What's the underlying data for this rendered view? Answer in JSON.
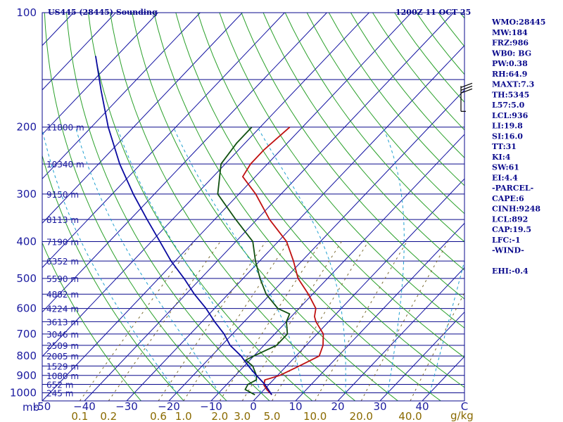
{
  "header": {
    "station": "US445 (28445) Sounding",
    "time": "1200Z 11 OCT 25"
  },
  "indices": [
    "WMO:28445",
    "MW:184",
    "FRZ:986",
    "WB0: BG",
    "PW:0.38",
    "RH:64.9",
    "MAXT:7.3",
    "TH:5345",
    "L57:5.0",
    "LCL:936",
    "LI:19.8",
    "SI:16.0",
    "TT:31",
    "KI:4",
    "SW:61",
    "EI:4.4",
    "-PARCEL-",
    "CAPE:6",
    "CINH:9248",
    "LCL:892",
    "CAP:19.5",
    "LFC:-1",
    "-WIND-",
    "",
    "EHI:-0.4"
  ],
  "colors": {
    "frame": "#0a0a8c",
    "isobar": "#0a0a8c",
    "isotherm": "#1010a0",
    "dry_adiabat": "#2aa02a",
    "moist_adiabat": "#20a0d0",
    "mixing_ratio": "#7a6a30",
    "temperature": "#c01010",
    "dewpoint": "#105010",
    "parcel": "#0a0aa0"
  },
  "chart_data": {
    "type": "line",
    "title": "US445 (28445) Sounding",
    "pressure_unit_label": "mb",
    "mixing_ratio_unit_label": "g/kg",
    "pressure_levels": [
      100,
      200,
      300,
      400,
      500,
      600,
      700,
      800,
      900,
      1000
    ],
    "pressure_tick_labels": [
      "100",
      "200",
      "300",
      "400",
      "500",
      "600",
      "700",
      "800",
      "900",
      "1000"
    ],
    "pressure_range_mb": [
      100,
      1050
    ],
    "temperature_range_c_at_surface": [
      -50,
      50
    ],
    "temperature_ticks": [
      {
        "value": -50,
        "label": "-50"
      },
      {
        "value": -40,
        "label": "−40"
      },
      {
        "value": -30,
        "label": "−30"
      },
      {
        "value": -20,
        "label": "−20"
      },
      {
        "value": -10,
        "label": "−10"
      },
      {
        "value": 0,
        "label": "0"
      },
      {
        "value": 10,
        "label": "10"
      },
      {
        "value": 20,
        "label": "20"
      },
      {
        "value": 30,
        "label": "30"
      },
      {
        "value": 40,
        "label": "40"
      },
      {
        "value": 50,
        "label": "C"
      }
    ],
    "mixing_ratio_ticks": [
      {
        "value": 0.1,
        "label": "0.1"
      },
      {
        "value": 0.2,
        "label": "0.2"
      },
      {
        "value": 0.6,
        "label": "0.6"
      },
      {
        "value": 1.0,
        "label": "1.0"
      },
      {
        "value": 2.0,
        "label": "2.0"
      },
      {
        "value": 3.0,
        "label": "3.0"
      },
      {
        "value": 5.0,
        "label": "5.0"
      },
      {
        "value": 10.0,
        "label": "10.0"
      },
      {
        "value": 20.0,
        "label": "20.0"
      },
      {
        "value": 40.0,
        "label": "40.0"
      }
    ],
    "height_levels": [
      {
        "p": 200,
        "label": "11800 m"
      },
      {
        "p": 250,
        "label": "10340 m"
      },
      {
        "p": 300,
        "label": "9150 m"
      },
      {
        "p": 350,
        "label": "8113 m"
      },
      {
        "p": 400,
        "label": "7190 m"
      },
      {
        "p": 450,
        "label": "6352 m"
      },
      {
        "p": 500,
        "label": "5590 m"
      },
      {
        "p": 550,
        "label": "4882 m"
      },
      {
        "p": 600,
        "label": "4224 m"
      },
      {
        "p": 650,
        "label": "3613 m"
      },
      {
        "p": 700,
        "label": "3046 m"
      },
      {
        "p": 750,
        "label": "2509 m"
      },
      {
        "p": 800,
        "label": "2005 m"
      },
      {
        "p": 850,
        "label": "1529 m"
      },
      {
        "p": 900,
        "label": "1080 m"
      },
      {
        "p": 950,
        "label": "652 m"
      },
      {
        "p": 1000,
        "label": "245 m"
      }
    ],
    "series": [
      {
        "name": "temperature",
        "values": [
          {
            "p": 1012,
            "t": 3.0
          },
          {
            "p": 980,
            "t": 0.6
          },
          {
            "p": 955,
            "t": -1.0
          },
          {
            "p": 925,
            "t": -2.0
          },
          {
            "p": 900,
            "t": 0.5
          },
          {
            "p": 850,
            "t": 3.0
          },
          {
            "p": 800,
            "t": 5.5
          },
          {
            "p": 750,
            "t": 4.0
          },
          {
            "p": 700,
            "t": 1.5
          },
          {
            "p": 650,
            "t": -3.0
          },
          {
            "p": 630,
            "t": -4.5
          },
          {
            "p": 600,
            "t": -6.0
          },
          {
            "p": 550,
            "t": -11.0
          },
          {
            "p": 500,
            "t": -17.0
          },
          {
            "p": 450,
            "t": -22.0
          },
          {
            "p": 400,
            "t": -28.0
          },
          {
            "p": 350,
            "t": -37.0
          },
          {
            "p": 300,
            "t": -46.0
          },
          {
            "p": 270,
            "t": -53.0
          },
          {
            "p": 250,
            "t": -54.0
          },
          {
            "p": 230,
            "t": -54.0
          },
          {
            "p": 200,
            "t": -53.0
          }
        ]
      },
      {
        "name": "dewpoint",
        "values": [
          {
            "p": 1012,
            "t": -1.0
          },
          {
            "p": 980,
            "t": -4.5
          },
          {
            "p": 950,
            "t": -5.0
          },
          {
            "p": 925,
            "t": -4.0
          },
          {
            "p": 900,
            "t": -5.0
          },
          {
            "p": 850,
            "t": -8.0
          },
          {
            "p": 820,
            "t": -11.0
          },
          {
            "p": 800,
            "t": -10.0
          },
          {
            "p": 750,
            "t": -7.0
          },
          {
            "p": 700,
            "t": -7.0
          },
          {
            "p": 650,
            "t": -10.0
          },
          {
            "p": 620,
            "t": -11.0
          },
          {
            "p": 600,
            "t": -15.0
          },
          {
            "p": 550,
            "t": -21.0
          },
          {
            "p": 500,
            "t": -26.0
          },
          {
            "p": 450,
            "t": -31.0
          },
          {
            "p": 400,
            "t": -36.0
          },
          {
            "p": 350,
            "t": -45.0
          },
          {
            "p": 300,
            "t": -55.0
          },
          {
            "p": 250,
            "t": -61.0
          },
          {
            "p": 220,
            "t": -62.0
          },
          {
            "p": 200,
            "t": -62.0
          }
        ]
      },
      {
        "name": "parcel",
        "values": [
          {
            "p": 1012,
            "t": 3.0
          },
          {
            "p": 950,
            "t": -1.0
          },
          {
            "p": 900,
            "t": -5.0
          },
          {
            "p": 850,
            "t": -9.0
          },
          {
            "p": 800,
            "t": -13.0
          },
          {
            "p": 750,
            "t": -18.0
          },
          {
            "p": 700,
            "t": -22.0
          },
          {
            "p": 650,
            "t": -27.0
          },
          {
            "p": 600,
            "t": -32.0
          },
          {
            "p": 550,
            "t": -38.0
          },
          {
            "p": 500,
            "t": -44.0
          },
          {
            "p": 450,
            "t": -51.0
          },
          {
            "p": 400,
            "t": -58.0
          },
          {
            "p": 350,
            "t": -66.0
          },
          {
            "p": 300,
            "t": -75.0
          },
          {
            "p": 250,
            "t": -85.0
          },
          {
            "p": 200,
            "t": -96.0
          },
          {
            "p": 160,
            "t": -106.0
          },
          {
            "p": 130,
            "t": -115.0
          }
        ]
      }
    ],
    "wind_barbs": [
      {
        "p": 160,
        "direction_deg": 280,
        "speed_kt": 25
      }
    ]
  }
}
